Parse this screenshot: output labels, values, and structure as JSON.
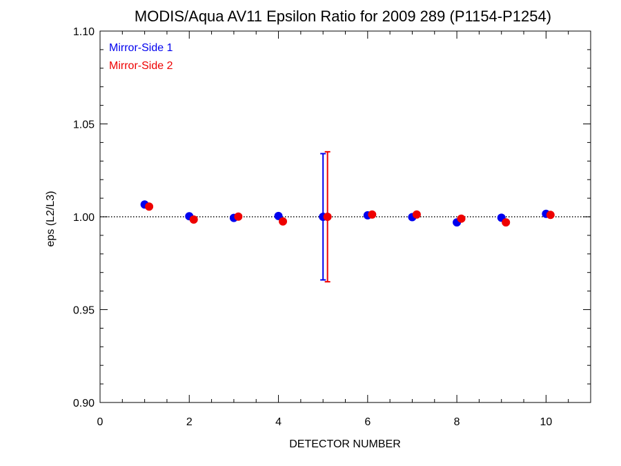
{
  "chart_data": {
    "type": "scatter",
    "title": "MODIS/Aqua AV11 Epsilon Ratio for 2009 289 (P1154-P1254)",
    "xlabel": "DETECTOR NUMBER",
    "ylabel": "eps (L2/L3)",
    "xlim": [
      0,
      11
    ],
    "ylim": [
      0.9,
      1.1
    ],
    "x_ticks": [
      0,
      2,
      4,
      6,
      8,
      10
    ],
    "x_tick_labels": [
      "0",
      "2",
      "4",
      "6",
      "8",
      "10"
    ],
    "y_ticks": [
      0.9,
      0.95,
      1.0,
      1.05,
      1.1
    ],
    "y_tick_labels": [
      "0.90",
      "0.95",
      "1.00",
      "1.05",
      "1.10"
    ],
    "reference_line": 1.0,
    "legend_placement": "top-left",
    "series": [
      {
        "name": "Mirror-Side 1",
        "color": "#0000ee",
        "x": [
          1,
          2,
          3,
          4,
          5,
          6,
          7,
          8,
          9,
          10
        ],
        "y": [
          1.0066,
          1.0003,
          0.9994,
          1.0004,
          1.0,
          1.0008,
          0.9998,
          0.997,
          0.9995,
          1.0016
        ],
        "error_bar": {
          "x": 5,
          "low": 0.966,
          "high": 1.034
        }
      },
      {
        "name": "Mirror-Side 2",
        "color": "#ee0000",
        "x": [
          1.1,
          2.1,
          3.1,
          4.1,
          5.1,
          6.1,
          7.1,
          8.1,
          9.1,
          10.1
        ],
        "y": [
          1.0055,
          0.9985,
          1.0001,
          0.9975,
          1.0,
          1.0012,
          1.0012,
          0.999,
          0.997,
          1.001
        ],
        "error_bar": {
          "x": 5.1,
          "low": 0.965,
          "high": 1.035
        }
      }
    ]
  }
}
